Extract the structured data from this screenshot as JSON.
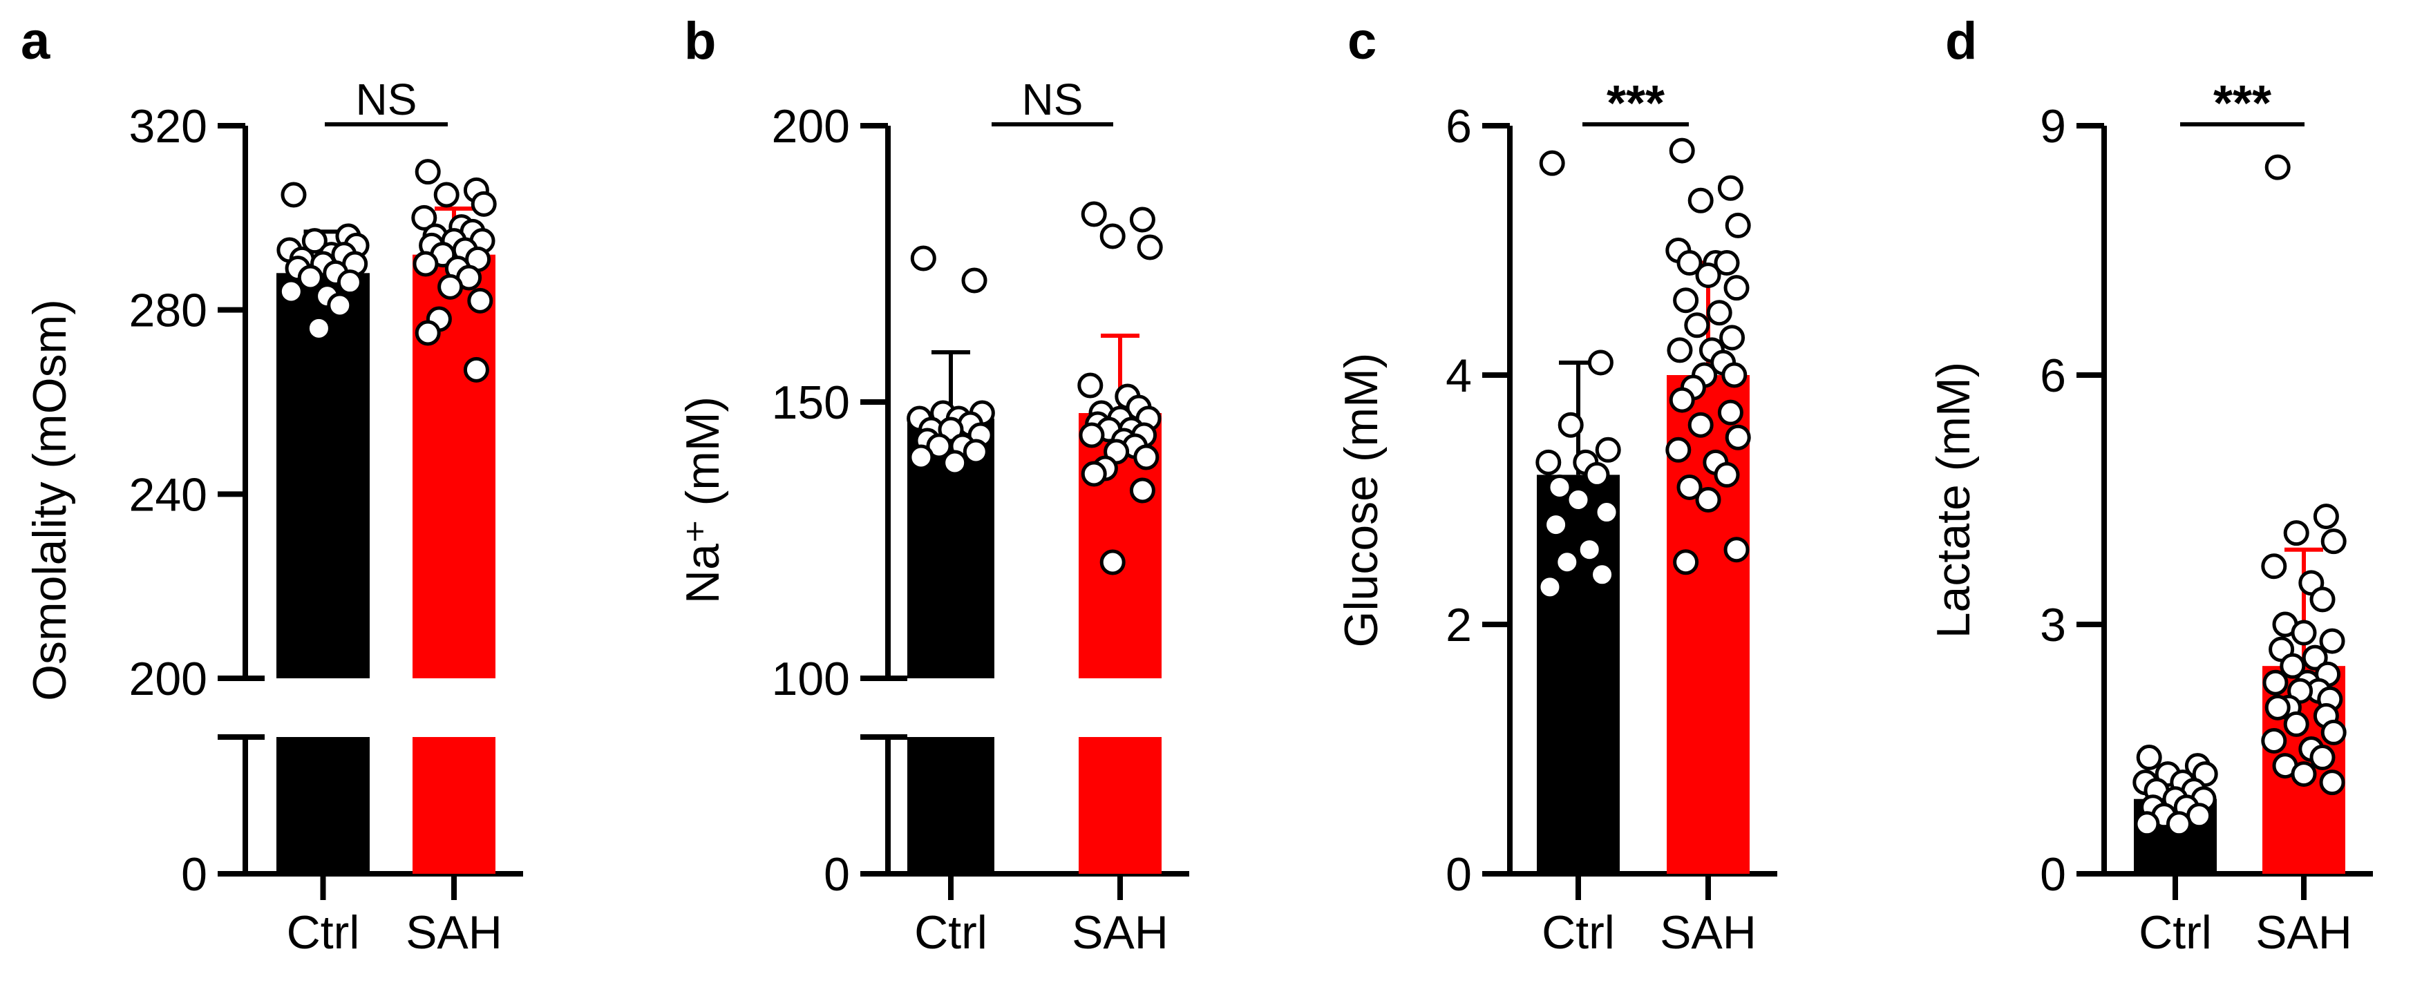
{
  "colors": {
    "ctrl": "#000000",
    "sah": "#ff0000",
    "point_fill": "#ffffff",
    "point_stroke": "#000000",
    "axis": "#000000"
  },
  "chart_data": [
    {
      "type": "bar",
      "panel": "a",
      "categories": [
        "Ctrl",
        "SAH"
      ],
      "ylabel": "Osmolality (mOsm)",
      "y_break": true,
      "y_ticks": [
        0,
        200,
        240,
        280,
        320
      ],
      "y_tick_labels": [
        "0",
        "200",
        "240",
        "280",
        "320"
      ],
      "ylim_upper": [
        200,
        320
      ],
      "significance": "NS",
      "series": [
        {
          "name": "Ctrl",
          "mean": 288,
          "sd": 9,
          "points": [
            305,
            296,
            295,
            294,
            293,
            292,
            292,
            291,
            290,
            290,
            289,
            288,
            287,
            286,
            284,
            283,
            281,
            276
          ]
        },
        {
          "name": "SAH",
          "mean": 292,
          "sd": 10,
          "points": [
            310,
            306,
            305,
            303,
            300,
            298,
            297,
            296,
            295,
            295,
            294,
            293,
            292,
            291,
            290,
            289,
            287,
            285,
            282,
            278,
            275,
            267
          ]
        }
      ]
    },
    {
      "type": "bar",
      "panel": "b",
      "categories": [
        "Ctrl",
        "SAH"
      ],
      "ylabel": "Na⁺ (mM)",
      "y_break": true,
      "y_ticks": [
        0,
        100,
        150,
        200
      ],
      "y_tick_labels": [
        "0",
        "100",
        "150",
        "200"
      ],
      "ylim_upper": [
        100,
        200
      ],
      "significance": "NS",
      "series": [
        {
          "name": "Ctrl",
          "mean": 147,
          "sd": 12,
          "points": [
            176,
            172,
            148,
            148,
            147,
            147,
            146,
            145,
            145,
            144,
            143,
            142,
            142,
            141,
            140,
            139
          ]
        },
        {
          "name": "SAH",
          "mean": 148,
          "sd": 14,
          "points": [
            184,
            183,
            180,
            178,
            153,
            151,
            149,
            148,
            147,
            147,
            146,
            145,
            145,
            144,
            144,
            143,
            142,
            141,
            140,
            138,
            137,
            134,
            121
          ]
        }
      ]
    },
    {
      "type": "bar",
      "panel": "c",
      "categories": [
        "Ctrl",
        "SAH"
      ],
      "ylabel": "Glucose (mM)",
      "y_ticks": [
        0,
        2,
        4,
        6
      ],
      "y_tick_labels": [
        "0",
        "2",
        "4",
        "6"
      ],
      "ylim": [
        0,
        6
      ],
      "significance": "***",
      "series": [
        {
          "name": "Ctrl",
          "mean": 3.2,
          "sd": 0.9,
          "points": [
            5.7,
            4.1,
            3.6,
            3.4,
            3.3,
            3.3,
            3.2,
            3.1,
            3.0,
            2.9,
            2.8,
            2.6,
            2.5,
            2.4,
            2.3
          ]
        },
        {
          "name": "SAH",
          "mean": 4.0,
          "sd": 0.9,
          "points": [
            5.8,
            5.5,
            5.4,
            5.2,
            5.0,
            4.9,
            4.9,
            4.9,
            4.8,
            4.7,
            4.6,
            4.5,
            4.4,
            4.3,
            4.2,
            4.2,
            4.1,
            4.0,
            4.0,
            3.9,
            3.8,
            3.7,
            3.6,
            3.5,
            3.4,
            3.3,
            3.2,
            3.1,
            3.0,
            2.6,
            2.5
          ]
        }
      ]
    },
    {
      "type": "bar",
      "panel": "d",
      "categories": [
        "Ctrl",
        "SAH"
      ],
      "ylabel": "Lactate (mM)",
      "y_ticks": [
        0,
        3,
        6,
        9
      ],
      "y_tick_labels": [
        "0",
        "3",
        "6",
        "9"
      ],
      "ylim": [
        0,
        9
      ],
      "significance": "***",
      "series": [
        {
          "name": "Ctrl",
          "mean": 0.9,
          "sd": 0.3,
          "points": [
            1.4,
            1.3,
            1.2,
            1.2,
            1.1,
            1.1,
            1.0,
            1.0,
            0.9,
            0.9,
            0.8,
            0.8,
            0.7,
            0.7,
            0.6,
            0.6
          ]
        },
        {
          "name": "SAH",
          "mean": 2.5,
          "sd": 1.4,
          "points": [
            8.5,
            4.3,
            4.1,
            4.0,
            3.7,
            3.5,
            3.3,
            3.0,
            2.9,
            2.8,
            2.7,
            2.6,
            2.5,
            2.4,
            2.3,
            2.3,
            2.2,
            2.2,
            2.1,
            2.0,
            2.0,
            1.9,
            1.8,
            1.7,
            1.6,
            1.5,
            1.4,
            1.3,
            1.2,
            1.1
          ]
        }
      ]
    }
  ]
}
